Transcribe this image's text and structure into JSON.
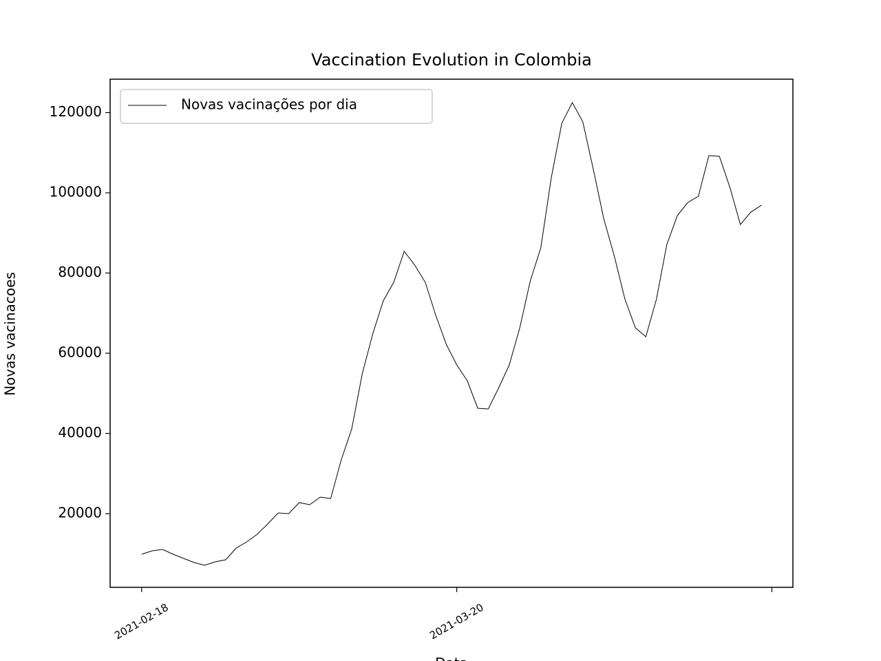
{
  "chart_data": {
    "type": "line",
    "title": "Vaccination Evolution in Colombia",
    "xlabel": "Data",
    "ylabel": "Novas vacinacoes",
    "x": [
      "2021-02-18",
      "2021-02-19",
      "2021-02-20",
      "2021-02-21",
      "2021-02-22",
      "2021-02-23",
      "2021-02-24",
      "2021-02-25",
      "2021-02-26",
      "2021-02-27",
      "2021-02-28",
      "2021-03-01",
      "2021-03-02",
      "2021-03-03",
      "2021-03-04",
      "2021-03-05",
      "2021-03-06",
      "2021-03-07",
      "2021-03-08",
      "2021-03-09",
      "2021-03-10",
      "2021-03-11",
      "2021-03-12",
      "2021-03-13",
      "2021-03-14",
      "2021-03-15",
      "2021-03-16",
      "2021-03-17",
      "2021-03-18",
      "2021-03-19",
      "2021-03-20",
      "2021-03-21",
      "2021-03-22",
      "2021-03-23",
      "2021-03-24",
      "2021-03-25",
      "2021-03-26",
      "2021-03-27",
      "2021-03-28",
      "2021-03-29",
      "2021-03-30",
      "2021-03-31",
      "2021-04-01",
      "2021-04-02",
      "2021-04-03",
      "2021-04-04",
      "2021-04-05",
      "2021-04-06",
      "2021-04-07",
      "2021-04-08",
      "2021-04-09",
      "2021-04-10",
      "2021-04-11",
      "2021-04-12",
      "2021-04-13",
      "2021-04-14",
      "2021-04-15",
      "2021-04-16",
      "2021-04-17",
      "2021-04-18"
    ],
    "series": [
      {
        "name": "Novas vacinações por dia",
        "color": "#000000",
        "values": [
          9870,
          10730,
          11070,
          9870,
          8840,
          7810,
          7120,
          7980,
          8500,
          11420,
          12960,
          14850,
          17420,
          20170,
          20000,
          22750,
          22230,
          24120,
          23780,
          33390,
          41120,
          54850,
          64810,
          73050,
          77680,
          85410,
          81980,
          77680,
          69440,
          62230,
          57080,
          53130,
          46270,
          46090,
          51420,
          57080,
          66350,
          78030,
          86270,
          103780,
          117340,
          122490,
          117680,
          105840,
          93480,
          84210,
          73560,
          66350,
          64120,
          73390,
          87120,
          94330,
          97600,
          99140,
          109270,
          109100,
          101370,
          92100,
          95190,
          96900
        ]
      }
    ],
    "xlim": [
      "2021-02-15",
      "2021-04-21"
    ],
    "xticks": [
      "2021-02-18",
      "2021-03-20",
      {
        "value": "2021-04-19",
        "label": null
      }
    ],
    "ylim": [
      1630,
      128330
    ],
    "yticks": [
      20000,
      40000,
      60000,
      80000,
      100000,
      120000
    ],
    "grid": false,
    "legend": "upper left"
  }
}
